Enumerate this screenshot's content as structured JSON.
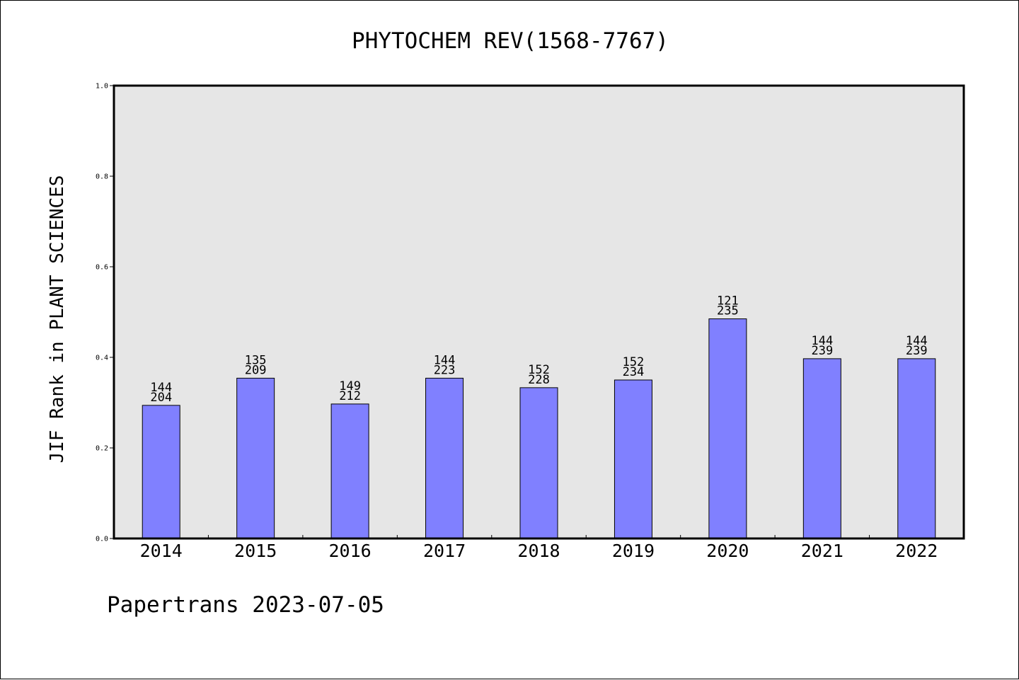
{
  "chart_data": {
    "type": "bar",
    "title": "PHYTOCHEM REV(1568-7767)",
    "xlabel": "",
    "ylabel": "JIF Rank in PLANT SCIENCES",
    "ylim": [
      0,
      1.0
    ],
    "yticks": [
      "0.0",
      "0.2",
      "0.4",
      "0.6",
      "0.8",
      "1.0"
    ],
    "categories": [
      "2014",
      "2015",
      "2016",
      "2017",
      "2018",
      "2019",
      "2020",
      "2021",
      "2022"
    ],
    "values": [
      0.294,
      0.354,
      0.297,
      0.354,
      0.333,
      0.35,
      0.485,
      0.397,
      0.397
    ],
    "bar_labels": [
      {
        "rank": "144",
        "total": "204"
      },
      {
        "rank": "135",
        "total": "209"
      },
      {
        "rank": "149",
        "total": "212"
      },
      {
        "rank": "144",
        "total": "223"
      },
      {
        "rank": "152",
        "total": "228"
      },
      {
        "rank": "152",
        "total": "234"
      },
      {
        "rank": "121",
        "total": "235"
      },
      {
        "rank": "144",
        "total": "239"
      },
      {
        "rank": "144",
        "total": "239"
      }
    ],
    "grid": false,
    "bar_color": "#8080ff",
    "plot_background": "#e6e6e6"
  },
  "footer": "Papertrans 2023-07-05"
}
